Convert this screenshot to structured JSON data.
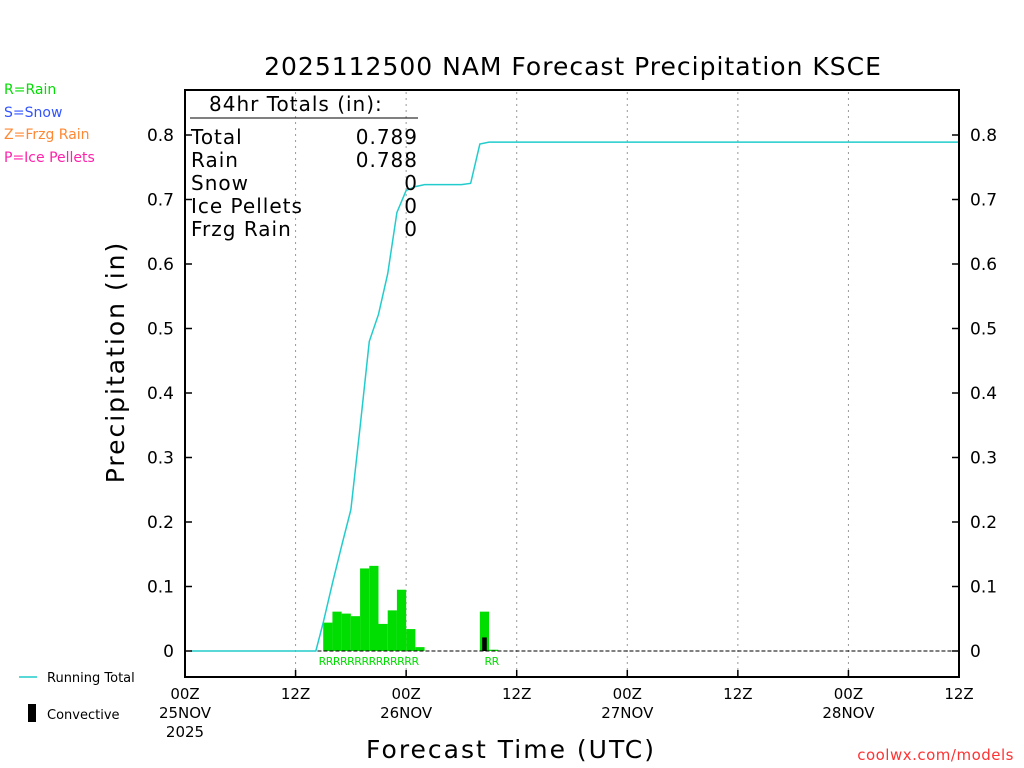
{
  "colors": {
    "rain": "#00dd00",
    "snow": "#3355ff",
    "frzg_rain": "#ff8833",
    "ice_pellets": "#ff22aa",
    "running_total": "#22cccc",
    "convective": "#000000",
    "credit": "#ff3333"
  },
  "ptype_legend": [
    {
      "label": "R=Rain",
      "color": "#00dd00"
    },
    {
      "label": "S=Snow",
      "color": "#3355ff"
    },
    {
      "label": "Z=Frzg Rain",
      "color": "#ff8833"
    },
    {
      "label": "P=Ice Pellets",
      "color": "#ff22aa"
    }
  ],
  "credit": "coolwx.com/models",
  "chart_data": {
    "type": "bar",
    "title": "2025112500 NAM Forecast Precipitation KSCE",
    "xlabel": "Forecast Time (UTC)",
    "ylabel": "Precipitation (in)",
    "ylim": [
      -0.04,
      0.87
    ],
    "xlim_hours": [
      0,
      84
    ],
    "grid_x_hours": [
      12,
      24,
      36,
      48,
      60,
      72
    ],
    "yticks": [
      0,
      0.1,
      0.2,
      0.3,
      0.4,
      0.5,
      0.6,
      0.7,
      0.8
    ],
    "ytick_labels": [
      "0",
      "0.1",
      "0.2",
      "0.3",
      "0.4",
      "0.5",
      "0.6",
      "0.7",
      "0.8"
    ],
    "xticks": [
      {
        "hour": 0,
        "lines": [
          "00Z",
          "25NOV",
          "2025"
        ]
      },
      {
        "hour": 12,
        "lines": [
          "12Z"
        ]
      },
      {
        "hour": 24,
        "lines": [
          "00Z",
          "26NOV"
        ]
      },
      {
        "hour": 36,
        "lines": [
          "12Z"
        ]
      },
      {
        "hour": 48,
        "lines": [
          "00Z",
          "27NOV"
        ]
      },
      {
        "hour": 60,
        "lines": [
          "12Z"
        ]
      },
      {
        "hour": 72,
        "lines": [
          "00Z",
          "28NOV"
        ]
      },
      {
        "hour": 84,
        "lines": [
          "12Z"
        ]
      }
    ],
    "totals": {
      "heading": "84hr Totals (in):",
      "rows": [
        {
          "label": "Total",
          "value": "0.789"
        },
        {
          "label": "Rain",
          "value": "0.788"
        },
        {
          "label": "Snow",
          "value": "0"
        },
        {
          "label": "Ice Pellets",
          "value": "0"
        },
        {
          "label": "Frzg Rain",
          "value": "0"
        }
      ]
    },
    "series": [
      {
        "name": "Hourly Rain",
        "bar_width_hours": 1,
        "bars": [
          {
            "hour": 15,
            "value": 0.044
          },
          {
            "hour": 16,
            "value": 0.061
          },
          {
            "hour": 17,
            "value": 0.058
          },
          {
            "hour": 18,
            "value": 0.054
          },
          {
            "hour": 19,
            "value": 0.128
          },
          {
            "hour": 20,
            "value": 0.132
          },
          {
            "hour": 21,
            "value": 0.042
          },
          {
            "hour": 22,
            "value": 0.063
          },
          {
            "hour": 23,
            "value": 0.095
          },
          {
            "hour": 24,
            "value": 0.034
          },
          {
            "hour": 25,
            "value": 0.006
          },
          {
            "hour": 32,
            "value": 0.061
          },
          {
            "hour": 33,
            "value": 0.002
          }
        ]
      },
      {
        "name": "Convective",
        "bar_width_hours": 0.5,
        "bars": [
          {
            "hour": 32.25,
            "value": 0.021
          }
        ]
      },
      {
        "name": "Running Total",
        "points": [
          [
            0,
            0
          ],
          [
            12,
            0
          ],
          [
            14.2,
            0
          ],
          [
            15,
            0.044
          ],
          [
            16,
            0.105
          ],
          [
            17,
            0.163
          ],
          [
            18,
            0.219
          ],
          [
            19,
            0.347
          ],
          [
            20,
            0.48
          ],
          [
            21,
            0.522
          ],
          [
            22,
            0.585
          ],
          [
            23,
            0.68
          ],
          [
            24,
            0.714
          ],
          [
            25,
            0.72
          ],
          [
            26,
            0.723
          ],
          [
            30,
            0.723
          ],
          [
            31,
            0.725
          ],
          [
            32,
            0.786
          ],
          [
            33,
            0.789
          ],
          [
            84,
            0.789
          ]
        ]
      }
    ],
    "ptype_markers": [
      {
        "start_hour": 14.5,
        "text": "RRRRRRRRRRRRRR"
      },
      {
        "start_hour": 32.5,
        "text": "RR"
      }
    ],
    "legend": [
      {
        "kind": "line",
        "label": "Running Total",
        "position": "bottom-left"
      },
      {
        "kind": "bar",
        "label": "Convective",
        "position": "bottom-left"
      }
    ]
  }
}
